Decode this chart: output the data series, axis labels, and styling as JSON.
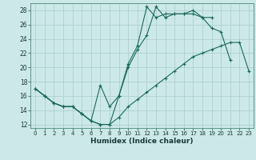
{
  "xlabel": "Humidex (Indice chaleur)",
  "bg_color": "#cce8e8",
  "grid_color": "#aacccc",
  "line_color": "#1a6b5a",
  "xlim": [
    -0.5,
    23.5
  ],
  "ylim": [
    11.5,
    29.0
  ],
  "yticks": [
    12,
    14,
    16,
    18,
    20,
    22,
    24,
    26,
    28
  ],
  "xticks": [
    0,
    1,
    2,
    3,
    4,
    5,
    6,
    7,
    8,
    9,
    10,
    11,
    12,
    13,
    14,
    15,
    16,
    17,
    18,
    19,
    20,
    21,
    22,
    23
  ],
  "line1_x": [
    0,
    1,
    2,
    3,
    4,
    5,
    6,
    7,
    8,
    9,
    10,
    11,
    12,
    13,
    14,
    15,
    16,
    17,
    18,
    19
  ],
  "line1_y": [
    17.0,
    16.0,
    15.0,
    14.5,
    14.5,
    13.5,
    12.5,
    12.0,
    12.0,
    16.0,
    20.5,
    23.0,
    28.5,
    27.0,
    27.5,
    27.5,
    27.5,
    28.0,
    27.0,
    27.0
  ],
  "line2_x": [
    0,
    1,
    2,
    3,
    4,
    5,
    6,
    7,
    8,
    9,
    10,
    11,
    12,
    13,
    14,
    15,
    16,
    17,
    18,
    19,
    20,
    21
  ],
  "line2_y": [
    17.0,
    16.0,
    15.0,
    14.5,
    14.5,
    13.5,
    12.5,
    17.5,
    14.5,
    16.0,
    20.0,
    22.5,
    24.5,
    28.5,
    27.0,
    27.5,
    27.5,
    27.5,
    27.0,
    25.5,
    25.0,
    21.0
  ],
  "line3_x": [
    0,
    1,
    2,
    3,
    4,
    5,
    6,
    7,
    8,
    9,
    10,
    11,
    12,
    13,
    14,
    15,
    16,
    17,
    18,
    19,
    20,
    21,
    22,
    23
  ],
  "line3_y": [
    17.0,
    16.0,
    15.0,
    14.5,
    14.5,
    13.5,
    12.5,
    12.0,
    12.0,
    13.0,
    14.5,
    15.5,
    16.5,
    17.5,
    18.5,
    19.5,
    20.5,
    21.5,
    22.0,
    22.5,
    23.0,
    23.5,
    23.5,
    19.5
  ]
}
